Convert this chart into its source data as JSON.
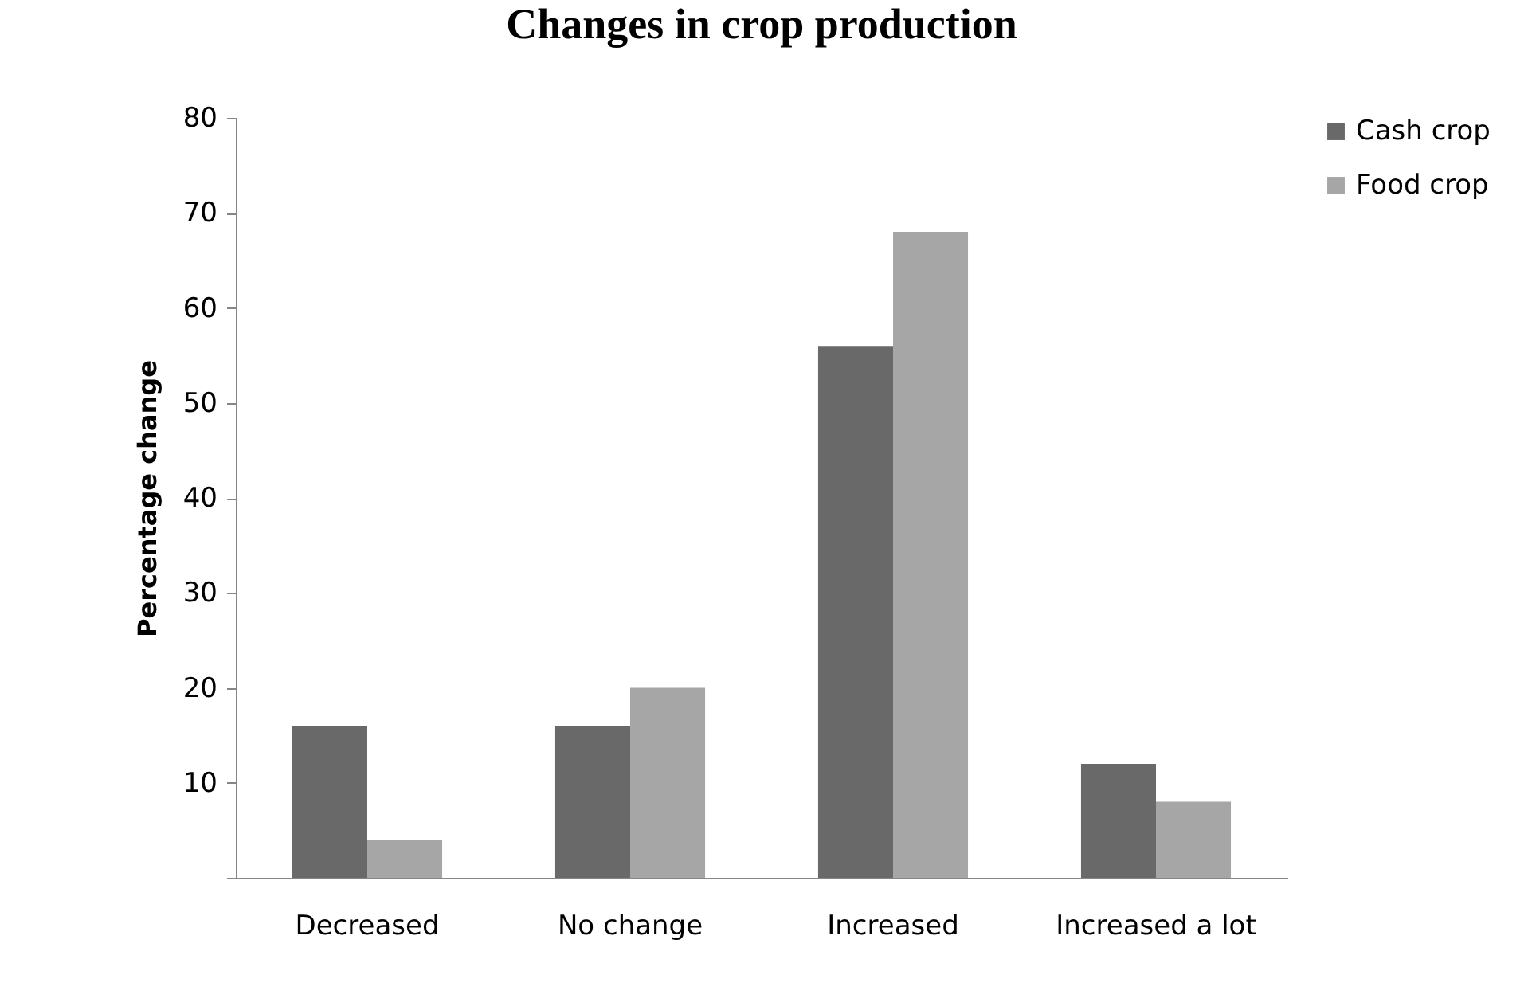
{
  "chart_data": {
    "type": "bar",
    "title": "Changes in crop production",
    "ylabel": "Percentage change",
    "categories": [
      "Decreased",
      "No change",
      "Increased",
      "Increased a lot"
    ],
    "series": [
      {
        "name": "Cash crop",
        "color": "#696969",
        "values": [
          16,
          16,
          56,
          12
        ]
      },
      {
        "name": "Food crop",
        "color": "#a6a6a6",
        "values": [
          4,
          20,
          68,
          8
        ]
      }
    ],
    "ylim": [
      0,
      80
    ],
    "yticks": [
      {
        "value": 0,
        "label": null
      },
      10,
      20,
      30,
      40,
      50,
      60,
      70,
      80
    ],
    "grid": false,
    "legend": "right"
  }
}
